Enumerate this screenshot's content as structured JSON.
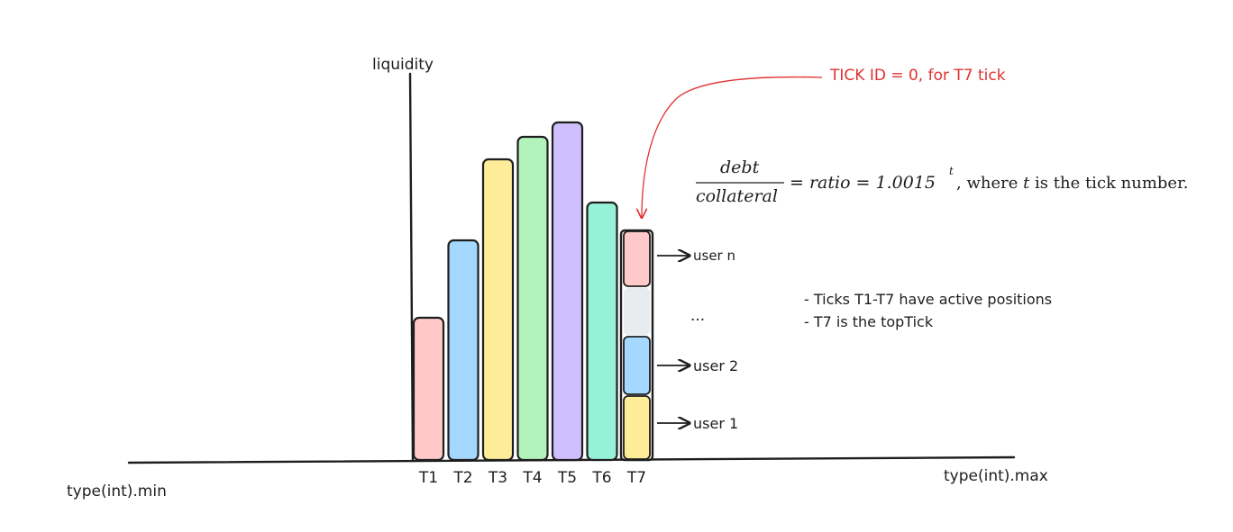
{
  "axes": {
    "y_label": "liquidity",
    "x_min_label": "type(int).min",
    "x_max_label": "type(int).max"
  },
  "chart_data": {
    "type": "bar",
    "categories": [
      "T1",
      "T2",
      "T3",
      "T4",
      "T5",
      "T6",
      "T7"
    ],
    "values": [
      158,
      244,
      334,
      359,
      375,
      286,
      255
    ],
    "colors": [
      "#ffc9c9",
      "#a5d8ff",
      "#ffec99",
      "#b2f2bb",
      "#d0bfff",
      "#96f2d7",
      "#ffffff"
    ]
  },
  "t7_stack": {
    "segments": [
      {
        "label": "user 1",
        "color": "#ffec99",
        "value": 72
      },
      {
        "label": "user 2",
        "color": "#a5d8ff",
        "value": 66
      },
      {
        "label": "...",
        "color": "#e9ecef",
        "value": 54
      },
      {
        "label": "user n",
        "color": "#ffc9c9",
        "value": 63
      }
    ],
    "labels": {
      "user_n": "user n",
      "ellipsis": "...",
      "user_2": "user 2",
      "user_1": "user 1"
    }
  },
  "annotation": {
    "text": "TICK ID = 0, for T7 tick",
    "color": "#e03131"
  },
  "formula": {
    "numerator": "debt",
    "denominator": "collateral",
    "eq_ratio": "= ratio = 1.0015",
    "exponent": "t",
    "where_prefix": ",  where ",
    "where_var": "t",
    "where_suffix": " is the tick number."
  },
  "notes": [
    "- Ticks T1-T7 have active positions",
    "- T7 is the topTick"
  ]
}
